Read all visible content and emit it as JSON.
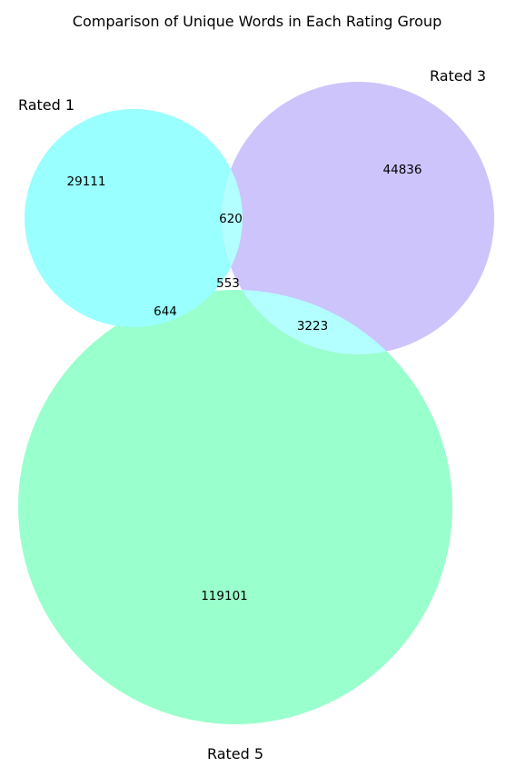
{
  "title": "Comparison of Unique Words in Each Rating Group",
  "sets": [
    {
      "key": "rated1",
      "label": "Rated 1",
      "color": "#99ffff"
    },
    {
      "key": "rated3",
      "label": "Rated 3",
      "color": "#ccc4fb"
    },
    {
      "key": "rated5",
      "label": "Rated 5",
      "color": "#99ffcc"
    }
  ],
  "regions": {
    "only_rated1": "29111",
    "only_rated3": "44836",
    "only_rated5": "119101",
    "rated1_rated3": "620",
    "rated1_rated5": "644",
    "rated3_rated5": "3223",
    "all_three": "553"
  },
  "intersection_color": "#b3ffff"
}
